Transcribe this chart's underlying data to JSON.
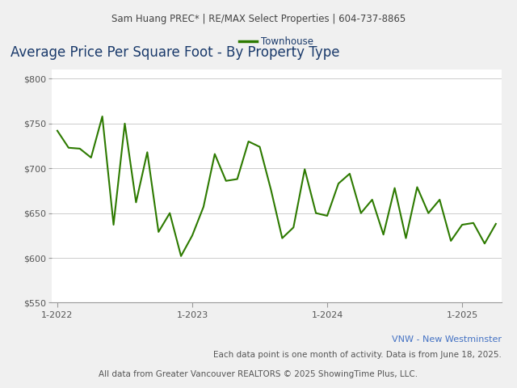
{
  "header_text": "Sam Huang PREC* | RE/MAX Select Properties | 604-737-8865",
  "title": "Average Price Per Square Foot - By Property Type",
  "legend_label": "Townhouse",
  "line_color": "#2d7a00",
  "title_color": "#1a3a6b",
  "legend_text_color": "#1a3a6b",
  "background_color": "#f0f0f0",
  "plot_bg_color": "#ffffff",
  "ylim": [
    550,
    810
  ],
  "yticks": [
    550,
    600,
    650,
    700,
    750,
    800
  ],
  "footer_line1": "VNW - New Westminster",
  "footer_line2": "Each data point is one month of activity. Data is from June 18, 2025.",
  "footer_line3": "All data from Greater Vancouver REALTORS © 2025 ShowingTime Plus, LLC.",
  "x_tick_labels": [
    "1-2022",
    "1-2023",
    "1-2024",
    "1-2025"
  ],
  "xtick_positions": [
    0,
    12,
    24,
    36
  ],
  "values": [
    742,
    723,
    722,
    712,
    758,
    637,
    750,
    662,
    718,
    629,
    650,
    602,
    625,
    657,
    716,
    686,
    688,
    730,
    724,
    676,
    622,
    634,
    699,
    650,
    647,
    683,
    694,
    650,
    665,
    626,
    678,
    622,
    679,
    650,
    665,
    619,
    637,
    639,
    616,
    638
  ]
}
